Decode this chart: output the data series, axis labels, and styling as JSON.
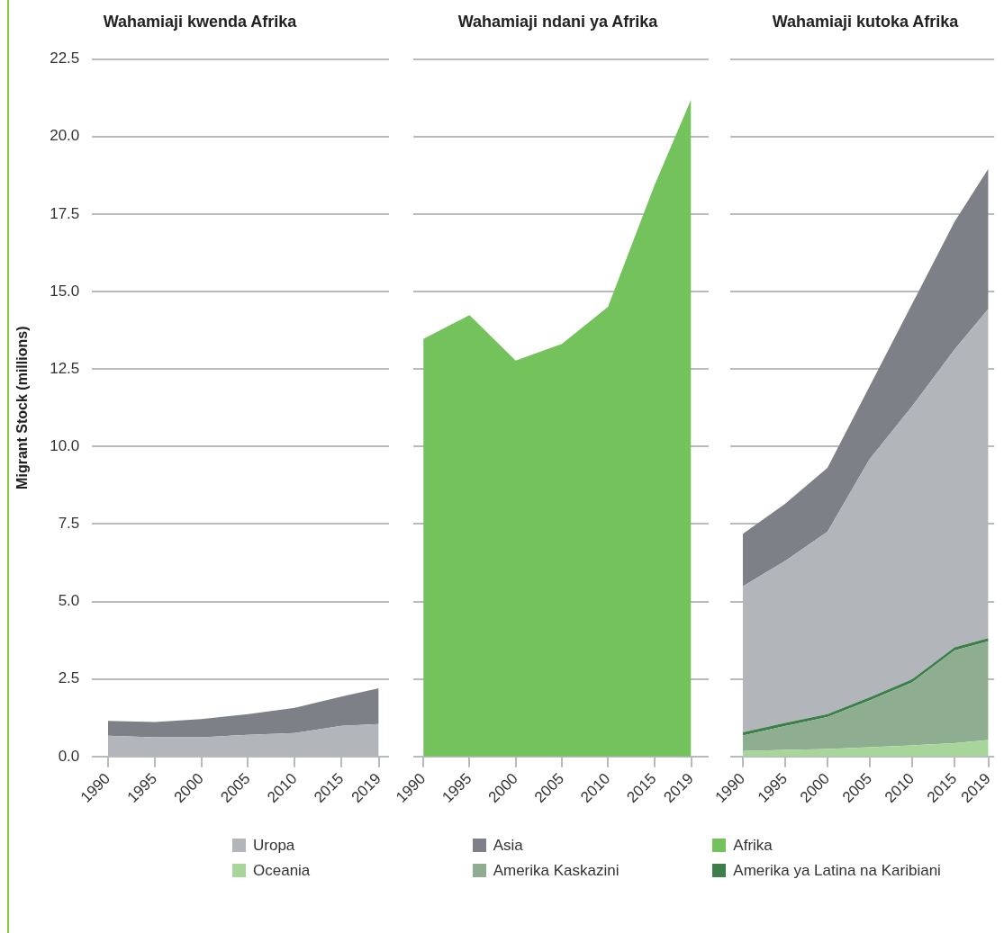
{
  "chart_data": [
    {
      "type": "area",
      "title": "Wahamiaji kwenda Afrika",
      "ylabel": "Migrant Stock (millions)",
      "stacked": true,
      "grid": "y",
      "legend": "bottom",
      "x": [
        1990,
        1995,
        2000,
        2005,
        2010,
        2015,
        2019
      ],
      "xlim": [
        1988.3,
        2020.1
      ],
      "xticks": [
        1990,
        1995,
        2000,
        2005,
        2010,
        2015,
        2019
      ],
      "ylim": [
        0,
        22.5
      ],
      "yticks": [
        {
          "value": 0,
          "label": "0.0"
        },
        {
          "value": 2.5,
          "label": "2.5"
        },
        {
          "value": 5,
          "label": "5.0"
        },
        {
          "value": 7.5,
          "label": "7.5"
        },
        {
          "value": 10,
          "label": "10.0"
        },
        {
          "value": 12.5,
          "label": "12.5"
        },
        {
          "value": 15,
          "label": "15.0"
        },
        {
          "value": 17.5,
          "label": "17.5"
        },
        {
          "value": 20,
          "label": "20.0"
        },
        {
          "value": 22.5,
          "label": "22.5"
        }
      ],
      "series": [
        {
          "name": "Uropa",
          "color": "#b2b6ba",
          "values": [
            0.67,
            0.62,
            0.62,
            0.7,
            0.76,
            0.99,
            1.05
          ]
        },
        {
          "name": "Asia",
          "color": "#7d8086",
          "values": [
            0.48,
            0.49,
            0.59,
            0.67,
            0.81,
            0.94,
            1.15
          ]
        }
      ]
    },
    {
      "type": "area",
      "title": "Wahamiaji ndani ya Afrika",
      "stacked": true,
      "grid": "y",
      "legend": "bottom",
      "tick_labels": "x",
      "x": [
        1990,
        1995,
        2000,
        2005,
        2010,
        2015,
        2019
      ],
      "xlim": [
        1988.9,
        2020.9
      ],
      "xticks": [
        1990,
        1995,
        2000,
        2005,
        2010,
        2015,
        2019
      ],
      "ylim": [
        0,
        22.5
      ],
      "yticks": [
        0,
        2.5,
        5,
        7.5,
        10,
        12.5,
        15,
        17.5,
        20,
        22.5
      ],
      "series": [
        {
          "name": "Afrika",
          "color": "#74c25c",
          "values": [
            13.47,
            14.24,
            12.77,
            13.31,
            14.51,
            18.4,
            21.2
          ]
        }
      ]
    },
    {
      "type": "area",
      "title": "Wahamiaji kutoka Afrika",
      "stacked": true,
      "grid": "y",
      "legend": "bottom",
      "tick_labels": "x",
      "x": [
        1990,
        1995,
        2000,
        2005,
        2010,
        2015,
        2019
      ],
      "xlim": [
        1988.5,
        2019.7
      ],
      "xticks": [
        1990,
        1995,
        2000,
        2005,
        2010,
        2015,
        2019
      ],
      "ylim": [
        0,
        22.5
      ],
      "yticks": [
        0,
        2.5,
        5,
        7.5,
        10,
        12.5,
        15,
        17.5,
        20,
        22.5
      ],
      "series": [
        {
          "name": "Oceania",
          "color": "#a8d69a",
          "values": [
            0.18,
            0.21,
            0.24,
            0.3,
            0.36,
            0.43,
            0.53
          ]
        },
        {
          "name": "Amerika Kaskazini",
          "color": "#8fae91",
          "values": [
            0.5,
            0.77,
            1.03,
            1.51,
            2.03,
            2.99,
            3.19
          ]
        },
        {
          "name": "Amerika ya Latina na Karibiani",
          "color": "#3d7f4b",
          "values": [
            0.1,
            0.1,
            0.1,
            0.1,
            0.1,
            0.1,
            0.1
          ]
        },
        {
          "name": "Uropa",
          "color": "#b2b6ba",
          "values": [
            4.71,
            5.23,
            5.88,
            7.69,
            8.81,
            9.61,
            10.62
          ]
        },
        {
          "name": "Asia",
          "color": "#7d8086",
          "values": [
            1.69,
            1.84,
            2.06,
            2.35,
            3.3,
            4.12,
            4.52
          ]
        }
      ]
    }
  ]
}
